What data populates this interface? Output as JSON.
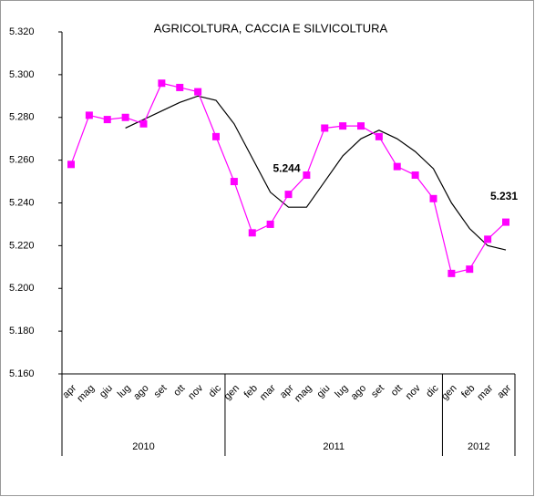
{
  "chart_data": {
    "type": "line",
    "title": "AGRICOLTURA, CACCIA E SILVICOLTURA",
    "categories": [
      "apr",
      "mag",
      "giu",
      "lug",
      "ago",
      "set",
      "ott",
      "nov",
      "dic",
      "gen",
      "feb",
      "mar",
      "apr",
      "mag",
      "giu",
      "lug",
      "ago",
      "set",
      "ott",
      "nov",
      "dic",
      "gen",
      "feb",
      "mar",
      "apr"
    ],
    "years": [
      {
        "label": "2010",
        "start": 0,
        "end": 8
      },
      {
        "label": "2011",
        "start": 9,
        "end": 20
      },
      {
        "label": "2012",
        "start": 21,
        "end": 24
      }
    ],
    "series": [
      {
        "color": "#ff00ff",
        "marker": "square",
        "values": [
          5258,
          5281,
          5279,
          5280,
          5277,
          5296,
          5294,
          5292,
          5271,
          5250,
          5226,
          5230,
          5244,
          5253,
          5275,
          5276,
          5276,
          5271,
          5257,
          5253,
          5242,
          5207,
          5209,
          5223,
          5231
        ],
        "value_labels": [
          null,
          null,
          null,
          null,
          null,
          null,
          null,
          null,
          null,
          null,
          null,
          null,
          "5.244",
          null,
          null,
          null,
          null,
          null,
          null,
          null,
          null,
          null,
          null,
          null,
          "5.231"
        ]
      },
      {
        "color": "#000000",
        "values": [
          null,
          null,
          null,
          5275,
          5279,
          5283,
          5287,
          5290,
          5288,
          5277,
          5261,
          5245,
          5238,
          5238,
          5250,
          5262,
          5270,
          5274,
          5270,
          5264,
          5256,
          5240,
          5228,
          5220,
          5218
        ]
      }
    ],
    "ylim": [
      5160,
      5320
    ],
    "yticks": [
      {
        "value": 5160,
        "label": "5.160"
      },
      {
        "value": 5180,
        "label": "5.180"
      },
      {
        "value": 5200,
        "label": "5.200"
      },
      {
        "value": 5220,
        "label": "5.220"
      },
      {
        "value": 5240,
        "label": "5.240"
      },
      {
        "value": 5260,
        "label": "5.260"
      },
      {
        "value": 5280,
        "label": "5.280"
      },
      {
        "value": 5300,
        "label": "5.300"
      },
      {
        "value": 5320,
        "label": "5.320"
      }
    ]
  }
}
